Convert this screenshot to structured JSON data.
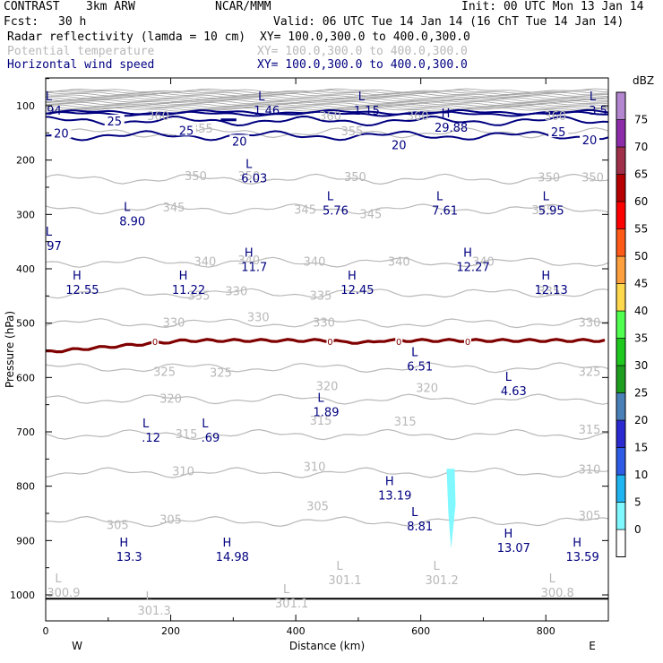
{
  "header": {
    "project": "CONTRAST",
    "model": "3km ARW",
    "org": "NCAR/MMM",
    "init": "Init: 00 UTC Mon 13 Jan 14",
    "fcst_label": "Fcst:",
    "fcst_value": "30 h",
    "valid": "Valid: 06 UTC Tue 14 Jan 14 (16 ChT Tue 14 Jan 14)",
    "fields": [
      {
        "name": "Radar reflectivity (lamda = 10 cm)",
        "xy": "XY= 100.0,300.0 to 400.0,300.0",
        "color": "#000000"
      },
      {
        "name": "Potential temperature",
        "xy": "XY= 100.0,300.0 to 400.0,300.0",
        "color": "#b8b8b8"
      },
      {
        "name": "Horizontal wind speed",
        "xy": "XY= 100.0,300.0 to 400.0,300.0",
        "color": "#000080"
      }
    ]
  },
  "chart_data": {
    "type": "cross-section",
    "xlabel": "Distance (km)",
    "ylabel": "Pressure (hPa)",
    "xlim": [
      0,
      900
    ],
    "ylim": [
      1050,
      70
    ],
    "x_ticks": [
      0,
      200,
      400,
      600,
      800
    ],
    "y_ticks": [
      100,
      200,
      300,
      400,
      500,
      600,
      700,
      800,
      900,
      1000
    ],
    "x_end_labels": {
      "left": "W",
      "right": "E"
    },
    "colorbar": {
      "title": "dBZ",
      "levels": [
        0,
        5,
        10,
        15,
        20,
        25,
        30,
        35,
        40,
        45,
        50,
        55,
        60,
        65,
        70,
        75
      ],
      "colors": [
        "#ffffff",
        "#7ff8ff",
        "#20b4f0",
        "#2d5be6",
        "#2a2ad0",
        "#4a80b8",
        "#1e9e1e",
        "#1ec81e",
        "#50ff50",
        "#ffd84d",
        "#ffa040",
        "#ff5a18",
        "#ff0000",
        "#b40000",
        "#a0304a",
        "#8c2ca8",
        "#b486d0"
      ]
    },
    "theta_contours": [
      {
        "value": 355,
        "p": 150
      },
      {
        "value": 350,
        "p": 235
      },
      {
        "value": 345,
        "p": 290
      },
      {
        "value": 340,
        "p": 388
      },
      {
        "value": 335,
        "p": 445
      },
      {
        "value": 330,
        "p": 500
      },
      {
        "value": 325,
        "p": 582
      },
      {
        "value": 320,
        "p": 640
      },
      {
        "value": 315,
        "p": 705
      },
      {
        "value": 310,
        "p": 775
      },
      {
        "value": 305,
        "p": 865
      }
    ],
    "theta_labels": [
      {
        "text": "360",
        "x": 180,
        "p": 120
      },
      {
        "text": "355",
        "x": 250,
        "p": 143
      },
      {
        "text": "360",
        "x": 455,
        "p": 120
      },
      {
        "text": "355",
        "x": 490,
        "p": 148
      },
      {
        "text": "360",
        "x": 595,
        "p": 120
      },
      {
        "text": "360",
        "x": 815,
        "p": 120
      },
      {
        "text": "350",
        "x": 240,
        "p": 230
      },
      {
        "text": "350",
        "x": 325,
        "p": 230
      },
      {
        "text": "350",
        "x": 495,
        "p": 232
      },
      {
        "text": "350",
        "x": 805,
        "p": 233
      },
      {
        "text": "350",
        "x": 875,
        "p": 233
      },
      {
        "text": "345",
        "x": 205,
        "p": 288
      },
      {
        "text": "345",
        "x": 415,
        "p": 292
      },
      {
        "text": "345",
        "x": 520,
        "p": 300
      },
      {
        "text": "345",
        "x": 795,
        "p": 293
      },
      {
        "text": "340",
        "x": 255,
        "p": 388
      },
      {
        "text": "340",
        "x": 325,
        "p": 385
      },
      {
        "text": "340",
        "x": 430,
        "p": 388
      },
      {
        "text": "340",
        "x": 565,
        "p": 388
      },
      {
        "text": "340",
        "x": 700,
        "p": 388
      },
      {
        "text": "335",
        "x": 245,
        "p": 450
      },
      {
        "text": "330",
        "x": 305,
        "p": 442
      },
      {
        "text": "335",
        "x": 440,
        "p": 450
      },
      {
        "text": "335",
        "x": 805,
        "p": 442
      },
      {
        "text": "330",
        "x": 205,
        "p": 500
      },
      {
        "text": "330",
        "x": 340,
        "p": 490
      },
      {
        "text": "330",
        "x": 445,
        "p": 500
      },
      {
        "text": "330",
        "x": 870,
        "p": 500
      },
      {
        "text": "325",
        "x": 190,
        "p": 590
      },
      {
        "text": "325",
        "x": 280,
        "p": 592
      },
      {
        "text": "325",
        "x": 870,
        "p": 590
      },
      {
        "text": "320",
        "x": 200,
        "p": 640
      },
      {
        "text": "320",
        "x": 450,
        "p": 617
      },
      {
        "text": "320",
        "x": 610,
        "p": 620
      },
      {
        "text": "315",
        "x": 225,
        "p": 705
      },
      {
        "text": "315",
        "x": 440,
        "p": 680
      },
      {
        "text": "315",
        "x": 575,
        "p": 682
      },
      {
        "text": "315",
        "x": 870,
        "p": 697
      },
      {
        "text": "310",
        "x": 220,
        "p": 773
      },
      {
        "text": "310",
        "x": 430,
        "p": 765
      },
      {
        "text": "310",
        "x": 870,
        "p": 770
      },
      {
        "text": "305",
        "x": 115,
        "p": 872
      },
      {
        "text": "305",
        "x": 200,
        "p": 862
      },
      {
        "text": "305",
        "x": 435,
        "p": 838
      },
      {
        "text": "305",
        "x": 870,
        "p": 855
      }
    ],
    "wind_contours": [
      {
        "value": 25,
        "p": 128
      },
      {
        "value": 20,
        "p": 155
      }
    ],
    "wind_labels": [
      {
        "text": "20",
        "x": 25,
        "p": 150
      },
      {
        "text": "25",
        "x": 110,
        "p": 128
      },
      {
        "text": "25",
        "x": 225,
        "p": 145
      },
      {
        "text": "20",
        "x": 310,
        "p": 165
      },
      {
        "text": "20",
        "x": 565,
        "p": 172
      },
      {
        "text": "25",
        "x": 820,
        "p": 148
      },
      {
        "text": "20",
        "x": 870,
        "p": 163
      }
    ],
    "freezing_level": {
      "value": 0,
      "p_left": 553,
      "p_right": 532,
      "label_x": [
        175,
        455,
        565,
        675
      ]
    },
    "extrema": [
      {
        "type": "L",
        "value": "94",
        "x": 5,
        "p": 93,
        "color": "#000080"
      },
      {
        "type": "L",
        "value": "1.46",
        "x": 345,
        "p": 93,
        "color": "#000080"
      },
      {
        "type": "L",
        "value": "1.15",
        "x": 505,
        "p": 93,
        "color": "#000080"
      },
      {
        "type": "L",
        "value": "3.5",
        "x": 875,
        "p": 93,
        "color": "#000080"
      },
      {
        "type": "H",
        "value": "29.88",
        "x": 640,
        "p": 125,
        "color": "#000080"
      },
      {
        "type": "L",
        "value": "6.03",
        "x": 325,
        "p": 218,
        "color": "#000080"
      },
      {
        "type": "L",
        "value": "5.76",
        "x": 455,
        "p": 277,
        "color": "#000080"
      },
      {
        "type": "L",
        "value": "7.61",
        "x": 630,
        "p": 277,
        "color": "#000080"
      },
      {
        "type": "L",
        "value": "5.95",
        "x": 800,
        "p": 277,
        "color": "#000080"
      },
      {
        "type": "L",
        "value": "8.90",
        "x": 130,
        "p": 297,
        "color": "#000080"
      },
      {
        "type": "L",
        "value": "97",
        "x": 5,
        "p": 342,
        "color": "#000080"
      },
      {
        "type": "H",
        "value": "11.7",
        "x": 325,
        "p": 381,
        "color": "#000080"
      },
      {
        "type": "H",
        "value": "12.27",
        "x": 675,
        "p": 381,
        "color": "#000080"
      },
      {
        "type": "H",
        "value": "12.55",
        "x": 50,
        "p": 423,
        "color": "#000080"
      },
      {
        "type": "H",
        "value": "11.22",
        "x": 220,
        "p": 423,
        "color": "#000080"
      },
      {
        "type": "H",
        "value": "12.45",
        "x": 490,
        "p": 423,
        "color": "#000080"
      },
      {
        "type": "H",
        "value": "12.13",
        "x": 800,
        "p": 423,
        "color": "#000080"
      },
      {
        "type": "L",
        "value": "6.51",
        "x": 590,
        "p": 564,
        "color": "#000080"
      },
      {
        "type": "L",
        "value": "4.63",
        "x": 740,
        "p": 609,
        "color": "#000080"
      },
      {
        "type": "L",
        "value": "1.89",
        "x": 440,
        "p": 648,
        "color": "#000080"
      },
      {
        "type": "L",
        "value": ".12",
        "x": 160,
        "p": 695,
        "color": "#000080"
      },
      {
        "type": "L",
        "value": ".69",
        "x": 255,
        "p": 695,
        "color": "#000080"
      },
      {
        "type": "H",
        "value": "13.19",
        "x": 550,
        "p": 801,
        "color": "#000080"
      },
      {
        "type": "L",
        "value": "8.81",
        "x": 590,
        "p": 858,
        "color": "#000080"
      },
      {
        "type": "H",
        "value": "13.07",
        "x": 740,
        "p": 898,
        "color": "#000080"
      },
      {
        "type": "H",
        "value": "13.3",
        "x": 125,
        "p": 914,
        "color": "#000080"
      },
      {
        "type": "H",
        "value": "14.98",
        "x": 290,
        "p": 914,
        "color": "#000080"
      },
      {
        "type": "H",
        "value": "13.59",
        "x": 850,
        "p": 914,
        "color": "#000080"
      },
      {
        "type": "L",
        "value": "301.1",
        "x": 470,
        "p": 957,
        "color": "#b8b8b8"
      },
      {
        "type": "L",
        "value": "301.2",
        "x": 625,
        "p": 957,
        "color": "#b8b8b8"
      },
      {
        "type": "L",
        "value": "300.9",
        "x": 20,
        "p": 980,
        "color": "#b8b8b8"
      },
      {
        "type": "L",
        "value": "300.8",
        "x": 810,
        "p": 980,
        "color": "#b8b8b8"
      },
      {
        "type": "L",
        "value": "301.3",
        "x": 165,
        "p": 1013,
        "color": "#b8b8b8"
      },
      {
        "type": "L",
        "value": "301.1",
        "x": 385,
        "p": 1000,
        "color": "#b8b8b8"
      }
    ],
    "reflectivity_cell": {
      "x_center": 647,
      "p_top": 768,
      "p_bottom": 915,
      "dbz": 10
    },
    "surface_pressure": 1007
  }
}
